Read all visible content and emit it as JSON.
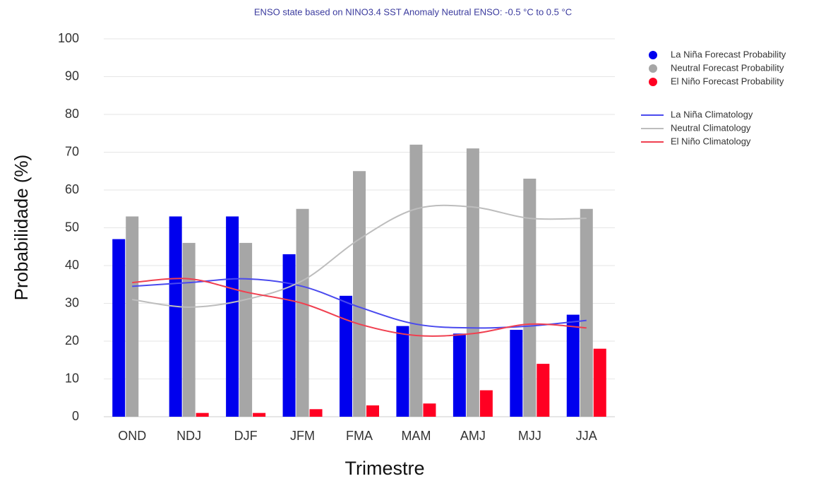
{
  "chart_data": {
    "type": "bar",
    "title": "ENSO state based on NINO3.4 SST Anomaly Neutral ENSO: -0.5 °C to 0.5 °C",
    "x_label": "Trimestre",
    "y_label": "Probabilidade (%)",
    "categories": [
      "OND",
      "NDJ",
      "DJF",
      "JFM",
      "FMA",
      "MAM",
      "AMJ",
      "MJJ",
      "JJA"
    ],
    "series": [
      {
        "name": "La Niña Forecast Probability",
        "type": "bar",
        "color": "#0000ee",
        "values": [
          47,
          53,
          53,
          43,
          32,
          24,
          22,
          23,
          27
        ]
      },
      {
        "name": "Neutral Forecast Probability",
        "type": "bar",
        "color": "#a6a6a6",
        "values": [
          53,
          46,
          46,
          55,
          65,
          72,
          71,
          63,
          55
        ]
      },
      {
        "name": "El Niño Forecast Probability",
        "type": "bar",
        "color": "#ff0022",
        "values": [
          0,
          1,
          1,
          2,
          3,
          3.5,
          7,
          14,
          18
        ]
      },
      {
        "name": "La Niña Climatology",
        "type": "line",
        "color": "#4a4aee",
        "values": [
          34.5,
          35.5,
          36.5,
          34.5,
          29,
          24.5,
          23.5,
          24,
          25.5
        ]
      },
      {
        "name": "Neutral Climatology",
        "type": "line",
        "color": "#bdbdbd",
        "values": [
          31,
          29,
          31,
          36,
          47,
          55,
          55.5,
          52.5,
          52.5
        ]
      },
      {
        "name": "El Niño Climatology",
        "type": "line",
        "color": "#f04050",
        "values": [
          35.5,
          36.5,
          33,
          30,
          24.5,
          21.5,
          22,
          24.5,
          23.5
        ]
      }
    ],
    "ylim": [
      0,
      100
    ],
    "yticks": [
      0,
      10,
      20,
      30,
      40,
      50,
      60,
      70,
      80,
      90,
      100
    ],
    "grid": true,
    "legend": "right"
  }
}
